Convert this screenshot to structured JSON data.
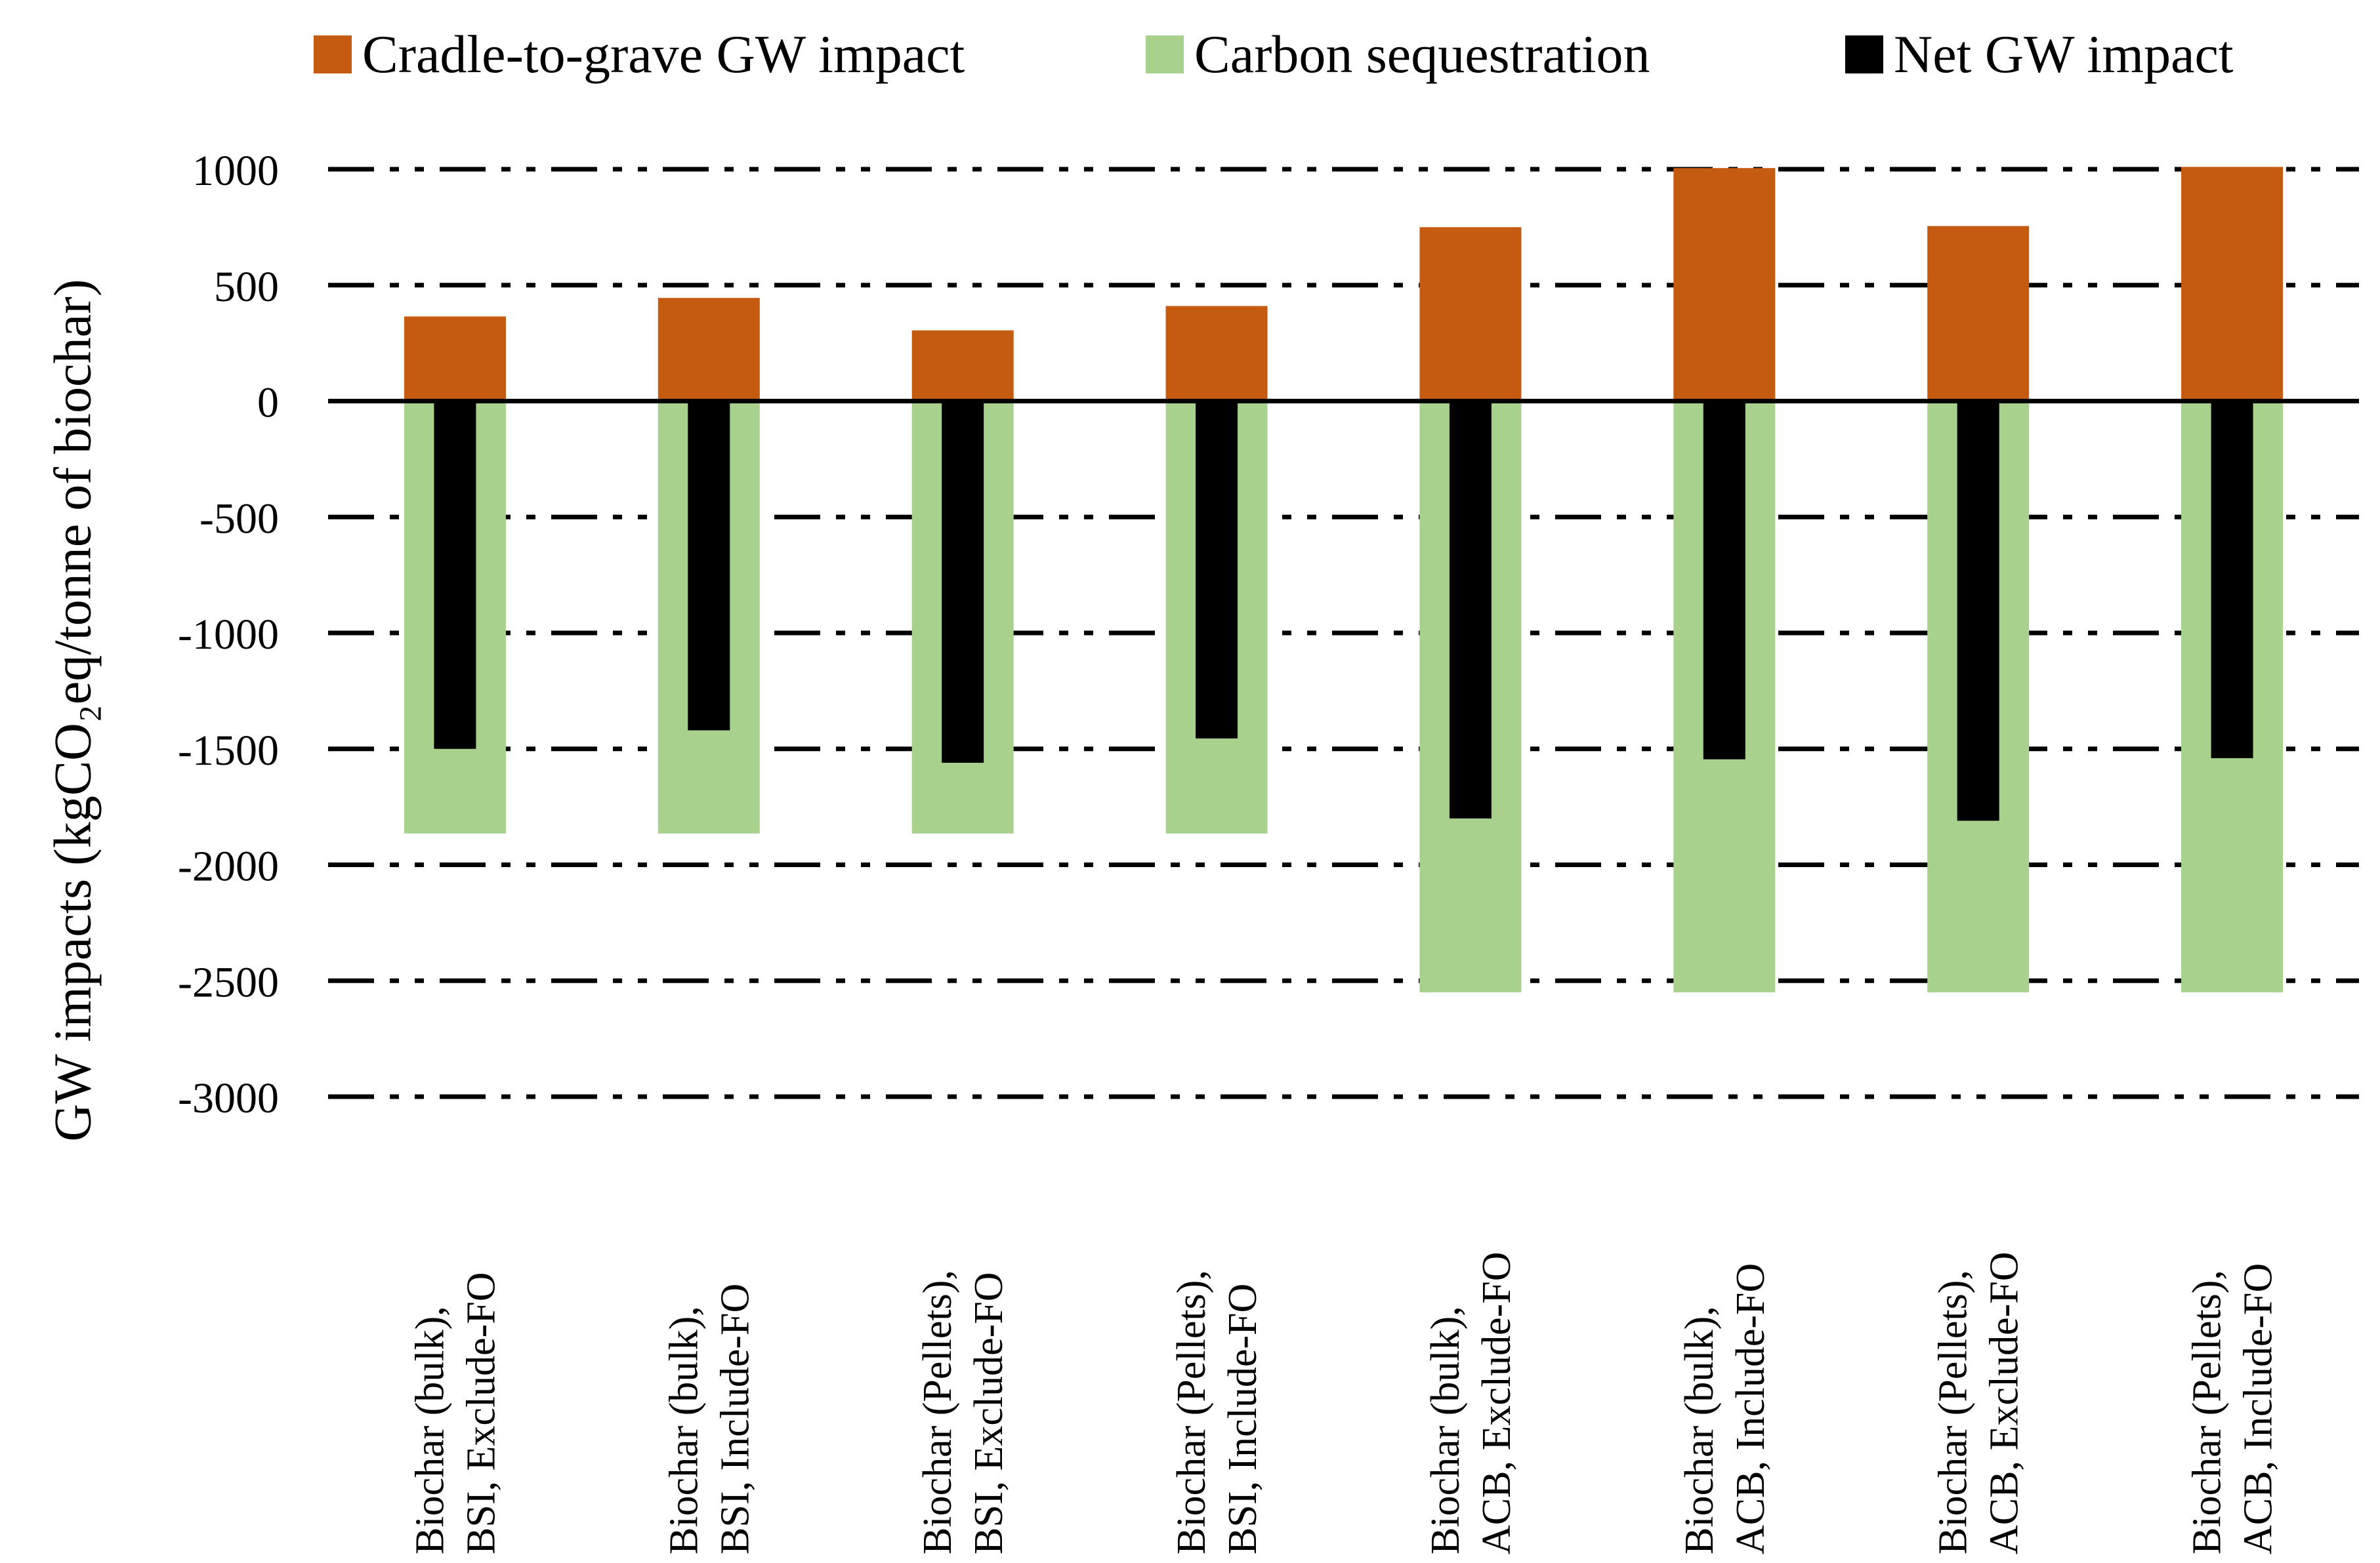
{
  "chart_data": {
    "type": "bar",
    "title": "",
    "xlabel": "",
    "ylabel": "GW impacts (kgCO₂eq/tonne of biochar)",
    "ylim": [
      -3000,
      1000
    ],
    "yticks": [
      1000,
      500,
      0,
      -500,
      -1000,
      -1500,
      -2000,
      -2500,
      -3000
    ],
    "grid": true,
    "legend_position": "top",
    "categories": [
      [
        "Biochar (bulk),",
        "BSI, Exclude-FO"
      ],
      [
        "Biochar (bulk),",
        "BSI, Include-FO"
      ],
      [
        "Biochar (Pellets),",
        "BSI, Exclude-FO"
      ],
      [
        "Biochar (Pellets),",
        "BSI, Include-FO"
      ],
      [
        "Biochar (bulk),",
        "ACB, Exclude-FO"
      ],
      [
        "Biochar (bulk),",
        "ACB, Include-FO"
      ],
      [
        "Biochar (Pellets),",
        "ACB, Exclude-FO"
      ],
      [
        "Biochar (Pellets),",
        "ACB, Include-FO"
      ]
    ],
    "series": [
      {
        "name": "Cradle-to-grave GW impact",
        "color": "#C55A11",
        "values": [
          365,
          445,
          305,
          410,
          750,
          1005,
          755,
          1010
        ]
      },
      {
        "name": "Carbon sequestration",
        "color": "#A9D18E",
        "values": [
          -1865,
          -1865,
          -1865,
          -1865,
          -2550,
          -2550,
          -2550,
          -2550
        ]
      },
      {
        "name": "Net GW impact",
        "color": "#000000",
        "values": [
          -1500,
          -1420,
          -1560,
          -1455,
          -1800,
          -1545,
          -1810,
          -1540
        ]
      }
    ]
  }
}
